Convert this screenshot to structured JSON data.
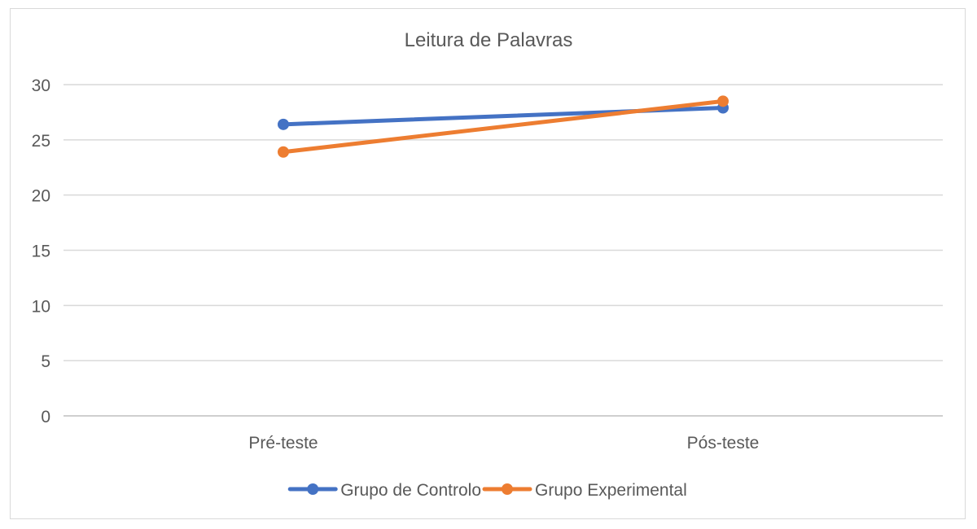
{
  "chart_data": {
    "type": "line",
    "title": "Leitura de Palavras",
    "xlabel": "",
    "ylabel": "",
    "categories": [
      "Pré-teste",
      "Pós-teste"
    ],
    "ylim": [
      0,
      30
    ],
    "yticks": [
      0,
      5,
      10,
      15,
      20,
      25,
      30
    ],
    "grid": true,
    "legend_position": "bottom",
    "series": [
      {
        "name": "Grupo de Controlo",
        "values": [
          26.4,
          27.9
        ],
        "color": "#4472c4"
      },
      {
        "name": "Grupo Experimental",
        "values": [
          23.9,
          28.5
        ],
        "color": "#ed7d31"
      }
    ]
  }
}
